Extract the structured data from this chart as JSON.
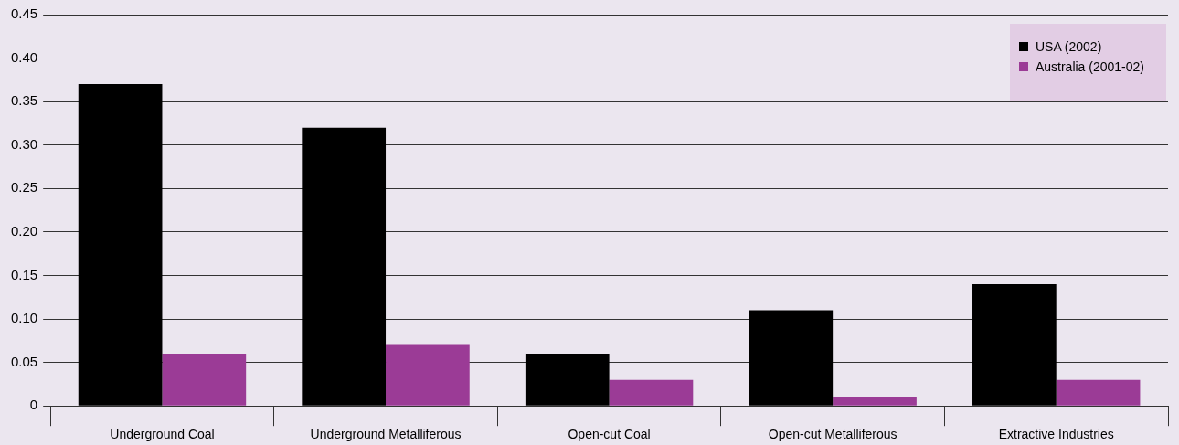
{
  "chart_data": {
    "type": "bar",
    "categories": [
      "Underground Coal",
      "Underground Metalliferous",
      "Open-cut Coal",
      "Open-cut Metalliferous",
      "Extractive Industries"
    ],
    "series": [
      {
        "name": "USA (2002)",
        "color": "#000000",
        "values": [
          0.37,
          0.32,
          0.06,
          0.11,
          0.14
        ]
      },
      {
        "name": "Australia (2001-02)",
        "color": "#9b3b96",
        "values": [
          0.06,
          0.07,
          0.03,
          0.01,
          0.03
        ]
      }
    ],
    "ylim": [
      0,
      0.45
    ],
    "yticks": [
      {
        "value": 0,
        "label": "0"
      },
      {
        "value": 0.05,
        "label": "0.05"
      },
      {
        "value": 0.1,
        "label": "0.10"
      },
      {
        "value": 0.15,
        "label": "0.15"
      },
      {
        "value": 0.2,
        "label": "0.20"
      },
      {
        "value": 0.25,
        "label": "0.25"
      },
      {
        "value": 0.3,
        "label": "0.30"
      },
      {
        "value": 0.35,
        "label": "0.35"
      },
      {
        "value": 0.4,
        "label": "0.40"
      },
      {
        "value": 0.45,
        "label": "0.45"
      }
    ],
    "grid": "y",
    "legend": "top right"
  }
}
